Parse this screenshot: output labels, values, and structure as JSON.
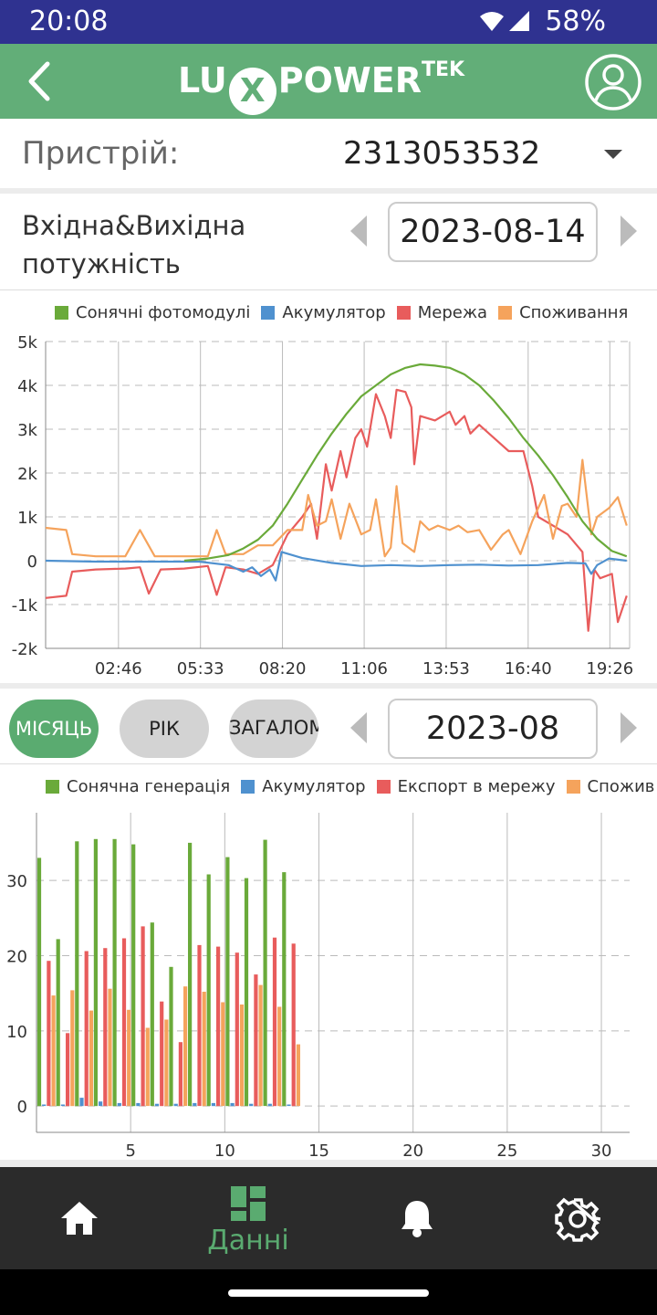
{
  "status_bar": {
    "time": "20:08",
    "battery": "58%"
  },
  "header": {
    "brand_left": "LU",
    "brand_x": "X",
    "brand_right": "POWER",
    "brand_sup": "TEK"
  },
  "device": {
    "label": "Пристрій:",
    "value": "2313053532"
  },
  "power_section": {
    "title": "Вхідна&Вихідна потужність",
    "date": "2023-08-14",
    "legend": [
      {
        "name": "Сонячні фотомодулі",
        "color": "#6aaa3a"
      },
      {
        "name": "Акумулятор",
        "color": "#4f91cf"
      },
      {
        "name": "Мережа",
        "color": "#e85c5c"
      },
      {
        "name": "Споживання",
        "color": "#f5a35c"
      }
    ]
  },
  "period": {
    "tabs": [
      "МІСЯЦЬ",
      "РІК",
      "ЗАГАЛОМ"
    ],
    "active": 0,
    "date": "2023-08"
  },
  "energy_section": {
    "legend": [
      {
        "name": "Сонячна генерація",
        "color": "#6aaa3a"
      },
      {
        "name": "Акумулятор",
        "color": "#4f91cf"
      },
      {
        "name": "Експорт в мережу",
        "color": "#e85c5c"
      },
      {
        "name": "Спожив",
        "color": "#f5a35c"
      }
    ]
  },
  "nav": {
    "data_label": "Данні"
  },
  "chart_data": [
    {
      "type": "line",
      "x_ticks": [
        "02:46",
        "05:33",
        "08:20",
        "11:06",
        "13:53",
        "16:40",
        "19:26"
      ],
      "y_ticks": [
        "5k",
        "4k",
        "3k",
        "2k",
        "1k",
        "0",
        "-1k",
        "-2k"
      ],
      "ylim": [
        -2000,
        5000
      ],
      "x_unit": "hours",
      "xlim": [
        0.3,
        20.1
      ],
      "grid": true,
      "legend_position": "top",
      "series": [
        {
          "name": "Сонячні фотомодулі",
          "color": "#6aaa3a",
          "points": [
            [
              5.0,
              0
            ],
            [
              5.8,
              50
            ],
            [
              6.5,
              130
            ],
            [
              7.0,
              280
            ],
            [
              7.5,
              480
            ],
            [
              8.0,
              800
            ],
            [
              8.5,
              1300
            ],
            [
              9.0,
              1850
            ],
            [
              9.5,
              2400
            ],
            [
              10.0,
              2900
            ],
            [
              10.5,
              3350
            ],
            [
              11.0,
              3750
            ],
            [
              11.5,
              4000
            ],
            [
              12.0,
              4250
            ],
            [
              12.5,
              4400
            ],
            [
              13.0,
              4480
            ],
            [
              13.5,
              4450
            ],
            [
              14.0,
              4400
            ],
            [
              14.5,
              4250
            ],
            [
              15.0,
              4000
            ],
            [
              15.5,
              3650
            ],
            [
              16.0,
              3250
            ],
            [
              16.5,
              2800
            ],
            [
              17.0,
              2400
            ],
            [
              17.5,
              1950
            ],
            [
              18.0,
              1450
            ],
            [
              18.5,
              900
            ],
            [
              19.0,
              500
            ],
            [
              19.5,
              220
            ],
            [
              20.0,
              100
            ]
          ]
        },
        {
          "name": "Акумулятор",
          "color": "#4f91cf",
          "points": [
            [
              0.3,
              0
            ],
            [
              2.0,
              -20
            ],
            [
              4.0,
              -20
            ],
            [
              5.5,
              -20
            ],
            [
              6.5,
              -100
            ],
            [
              7.0,
              -250
            ],
            [
              7.3,
              -150
            ],
            [
              7.6,
              -350
            ],
            [
              7.9,
              -200
            ],
            [
              8.1,
              -450
            ],
            [
              8.3,
              200
            ],
            [
              9.0,
              60
            ],
            [
              10.0,
              -50
            ],
            [
              11.0,
              -120
            ],
            [
              12.0,
              -100
            ],
            [
              13.0,
              -120
            ],
            [
              14.0,
              -100
            ],
            [
              15.0,
              -90
            ],
            [
              16.0,
              -110
            ],
            [
              17.0,
              -100
            ],
            [
              18.0,
              -50
            ],
            [
              18.6,
              -60
            ],
            [
              18.8,
              -300
            ],
            [
              19.0,
              -100
            ],
            [
              19.4,
              50
            ],
            [
              20.0,
              0
            ]
          ]
        },
        {
          "name": "Мережа",
          "color": "#e85c5c",
          "points": [
            [
              0.3,
              -850
            ],
            [
              1.0,
              -800
            ],
            [
              1.2,
              -250
            ],
            [
              2.0,
              -200
            ],
            [
              3.0,
              -180
            ],
            [
              3.5,
              -150
            ],
            [
              3.8,
              -750
            ],
            [
              4.2,
              -200
            ],
            [
              5.0,
              -180
            ],
            [
              5.8,
              -120
            ],
            [
              6.1,
              -780
            ],
            [
              6.4,
              -150
            ],
            [
              7.0,
              -200
            ],
            [
              7.5,
              -300
            ],
            [
              8.0,
              -100
            ],
            [
              8.5,
              600
            ],
            [
              9.0,
              1000
            ],
            [
              9.3,
              1300
            ],
            [
              9.5,
              500
            ],
            [
              9.8,
              2200
            ],
            [
              10.0,
              1600
            ],
            [
              10.3,
              2500
            ],
            [
              10.5,
              1900
            ],
            [
              10.8,
              2800
            ],
            [
              11.0,
              3000
            ],
            [
              11.2,
              2600
            ],
            [
              11.5,
              3800
            ],
            [
              11.8,
              3300
            ],
            [
              12.0,
              2800
            ],
            [
              12.2,
              3900
            ],
            [
              12.5,
              3850
            ],
            [
              12.7,
              3500
            ],
            [
              12.8,
              2200
            ],
            [
              13.0,
              3300
            ],
            [
              13.5,
              3200
            ],
            [
              14.0,
              3400
            ],
            [
              14.2,
              3100
            ],
            [
              14.5,
              3300
            ],
            [
              14.7,
              2900
            ],
            [
              15.0,
              3100
            ],
            [
              15.5,
              2800
            ],
            [
              16.0,
              2500
            ],
            [
              16.5,
              2500
            ],
            [
              16.8,
              1700
            ],
            [
              17.0,
              1000
            ],
            [
              17.5,
              800
            ],
            [
              18.0,
              600
            ],
            [
              18.5,
              200
            ],
            [
              18.7,
              -1600
            ],
            [
              18.9,
              -200
            ],
            [
              19.1,
              -400
            ],
            [
              19.5,
              -300
            ],
            [
              19.7,
              -1400
            ],
            [
              20.0,
              -800
            ]
          ]
        },
        {
          "name": "Споживання",
          "color": "#f5a35c",
          "points": [
            [
              0.3,
              750
            ],
            [
              1.0,
              700
            ],
            [
              1.2,
              150
            ],
            [
              2.0,
              100
            ],
            [
              3.0,
              100
            ],
            [
              3.5,
              700
            ],
            [
              4.0,
              100
            ],
            [
              5.0,
              100
            ],
            [
              5.8,
              100
            ],
            [
              6.1,
              700
            ],
            [
              6.4,
              150
            ],
            [
              7.0,
              150
            ],
            [
              7.5,
              350
            ],
            [
              8.0,
              350
            ],
            [
              8.5,
              700
            ],
            [
              9.0,
              700
            ],
            [
              9.2,
              1500
            ],
            [
              9.5,
              800
            ],
            [
              9.8,
              900
            ],
            [
              10.0,
              1400
            ],
            [
              10.3,
              500
            ],
            [
              10.6,
              1300
            ],
            [
              11.0,
              600
            ],
            [
              11.3,
              700
            ],
            [
              11.5,
              1400
            ],
            [
              11.8,
              100
            ],
            [
              12.0,
              300
            ],
            [
              12.2,
              1700
            ],
            [
              12.4,
              400
            ],
            [
              12.8,
              200
            ],
            [
              13.0,
              900
            ],
            [
              13.3,
              700
            ],
            [
              13.6,
              800
            ],
            [
              14.0,
              700
            ],
            [
              14.3,
              800
            ],
            [
              14.6,
              650
            ],
            [
              15.0,
              700
            ],
            [
              15.4,
              250
            ],
            [
              15.8,
              600
            ],
            [
              16.0,
              700
            ],
            [
              16.4,
              150
            ],
            [
              16.8,
              900
            ],
            [
              17.2,
              1500
            ],
            [
              17.5,
              500
            ],
            [
              17.8,
              1250
            ],
            [
              18.0,
              1300
            ],
            [
              18.3,
              1000
            ],
            [
              18.5,
              2300
            ],
            [
              18.8,
              600
            ],
            [
              19.0,
              1000
            ],
            [
              19.4,
              1200
            ],
            [
              19.7,
              1450
            ],
            [
              20.0,
              800
            ]
          ]
        }
      ]
    },
    {
      "type": "bar",
      "x_ticks": [
        "5",
        "10",
        "15",
        "20",
        "25",
        "30"
      ],
      "y_ticks": [
        "30",
        "20",
        "10",
        "0"
      ],
      "ylim": [
        -3.5,
        39
      ],
      "xlim": [
        0,
        31.5
      ],
      "grid": true,
      "legend_position": "top",
      "categories": [
        1,
        2,
        3,
        4,
        5,
        6,
        7,
        8,
        9,
        10,
        11,
        12,
        13,
        14
      ],
      "series": [
        {
          "name": "Сонячна генерація",
          "color": "#6aaa3a",
          "values": [
            33.0,
            22.2,
            35.2,
            35.5,
            35.5,
            34.8,
            24.4,
            18.5,
            35.0,
            30.8,
            33.1,
            30.3,
            35.4,
            31.1
          ]
        },
        {
          "name": "Акумулятор",
          "color": "#4f91cf",
          "values": [
            0.2,
            0.2,
            1.1,
            0.6,
            0.4,
            0.4,
            0.3,
            0.3,
            0.4,
            0.4,
            0.4,
            0.3,
            0.3,
            0.2
          ]
        },
        {
          "name": "Експорт в мережу",
          "color": "#e85c5c",
          "values": [
            19.3,
            9.7,
            20.6,
            21.0,
            22.3,
            23.9,
            13.9,
            8.5,
            21.4,
            21.2,
            20.4,
            17.5,
            22.4,
            21.6
          ]
        },
        {
          "name": "Спожив",
          "color": "#f5a35c",
          "values": [
            14.7,
            15.4,
            12.7,
            15.6,
            12.8,
            10.4,
            11.5,
            15.9,
            15.2,
            13.8,
            13.5,
            16.1,
            13.2,
            8.2
          ]
        }
      ]
    }
  ]
}
